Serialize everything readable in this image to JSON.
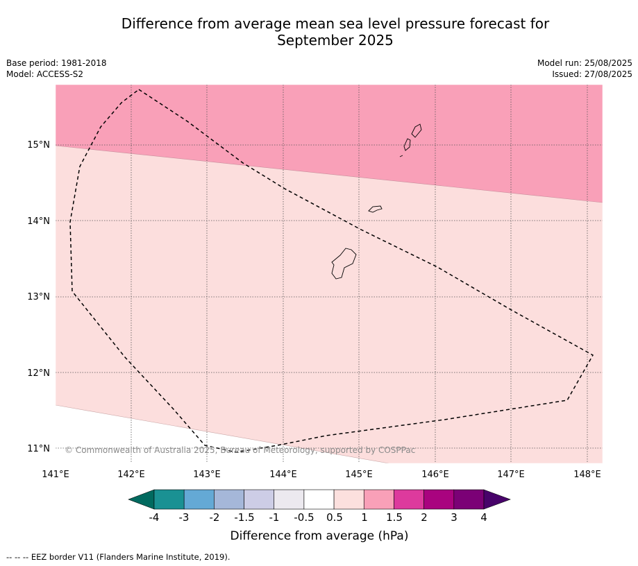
{
  "title": {
    "line1": "Difference from average mean sea level pressure forecast for",
    "line2": "September 2025"
  },
  "meta": {
    "base_period": "Base period: 1981-2018",
    "model": "Model: ACCESS-S2",
    "model_run": "Model run: 25/08/2025",
    "issued": "Issued: 27/08/2025"
  },
  "map": {
    "lon_ticks": [
      "141°E",
      "142°E",
      "143°E",
      "144°E",
      "145°E",
      "146°E",
      "147°E",
      "148°E"
    ],
    "lat_ticks": [
      "15°N",
      "14°N",
      "13°N",
      "12°N",
      "11°N"
    ],
    "copyright": "© Commonwealth of Australia 2025, Bureau of Meteorology, supported by COSPPac",
    "fill_colors": {
      "band_1_5_to_2": "#f9a0b8",
      "band_0_5_to_1_5": "#fcdedd",
      "band_neutral": "#ffffff"
    }
  },
  "colorbar": {
    "label": "Difference from average (hPa)",
    "ticks": [
      "-4",
      "-3",
      "-2",
      "-1.5",
      "-1",
      "-0.5",
      "0.5",
      "1",
      "1.5",
      "2",
      "3",
      "4"
    ],
    "colors": [
      "#1a9193",
      "#64a9d5",
      "#a5b7d9",
      "#cdcde6",
      "#ece9ef",
      "#ffffff",
      "#fce0de",
      "#f9a0b8",
      "#dd3a9d",
      "#a9037f",
      "#7b0176"
    ],
    "under_color": "#016a5f",
    "over_color": "#48036a"
  },
  "footnote": "-- -- -- EEZ border V11 (Flanders Marine Institute, 2019)."
}
